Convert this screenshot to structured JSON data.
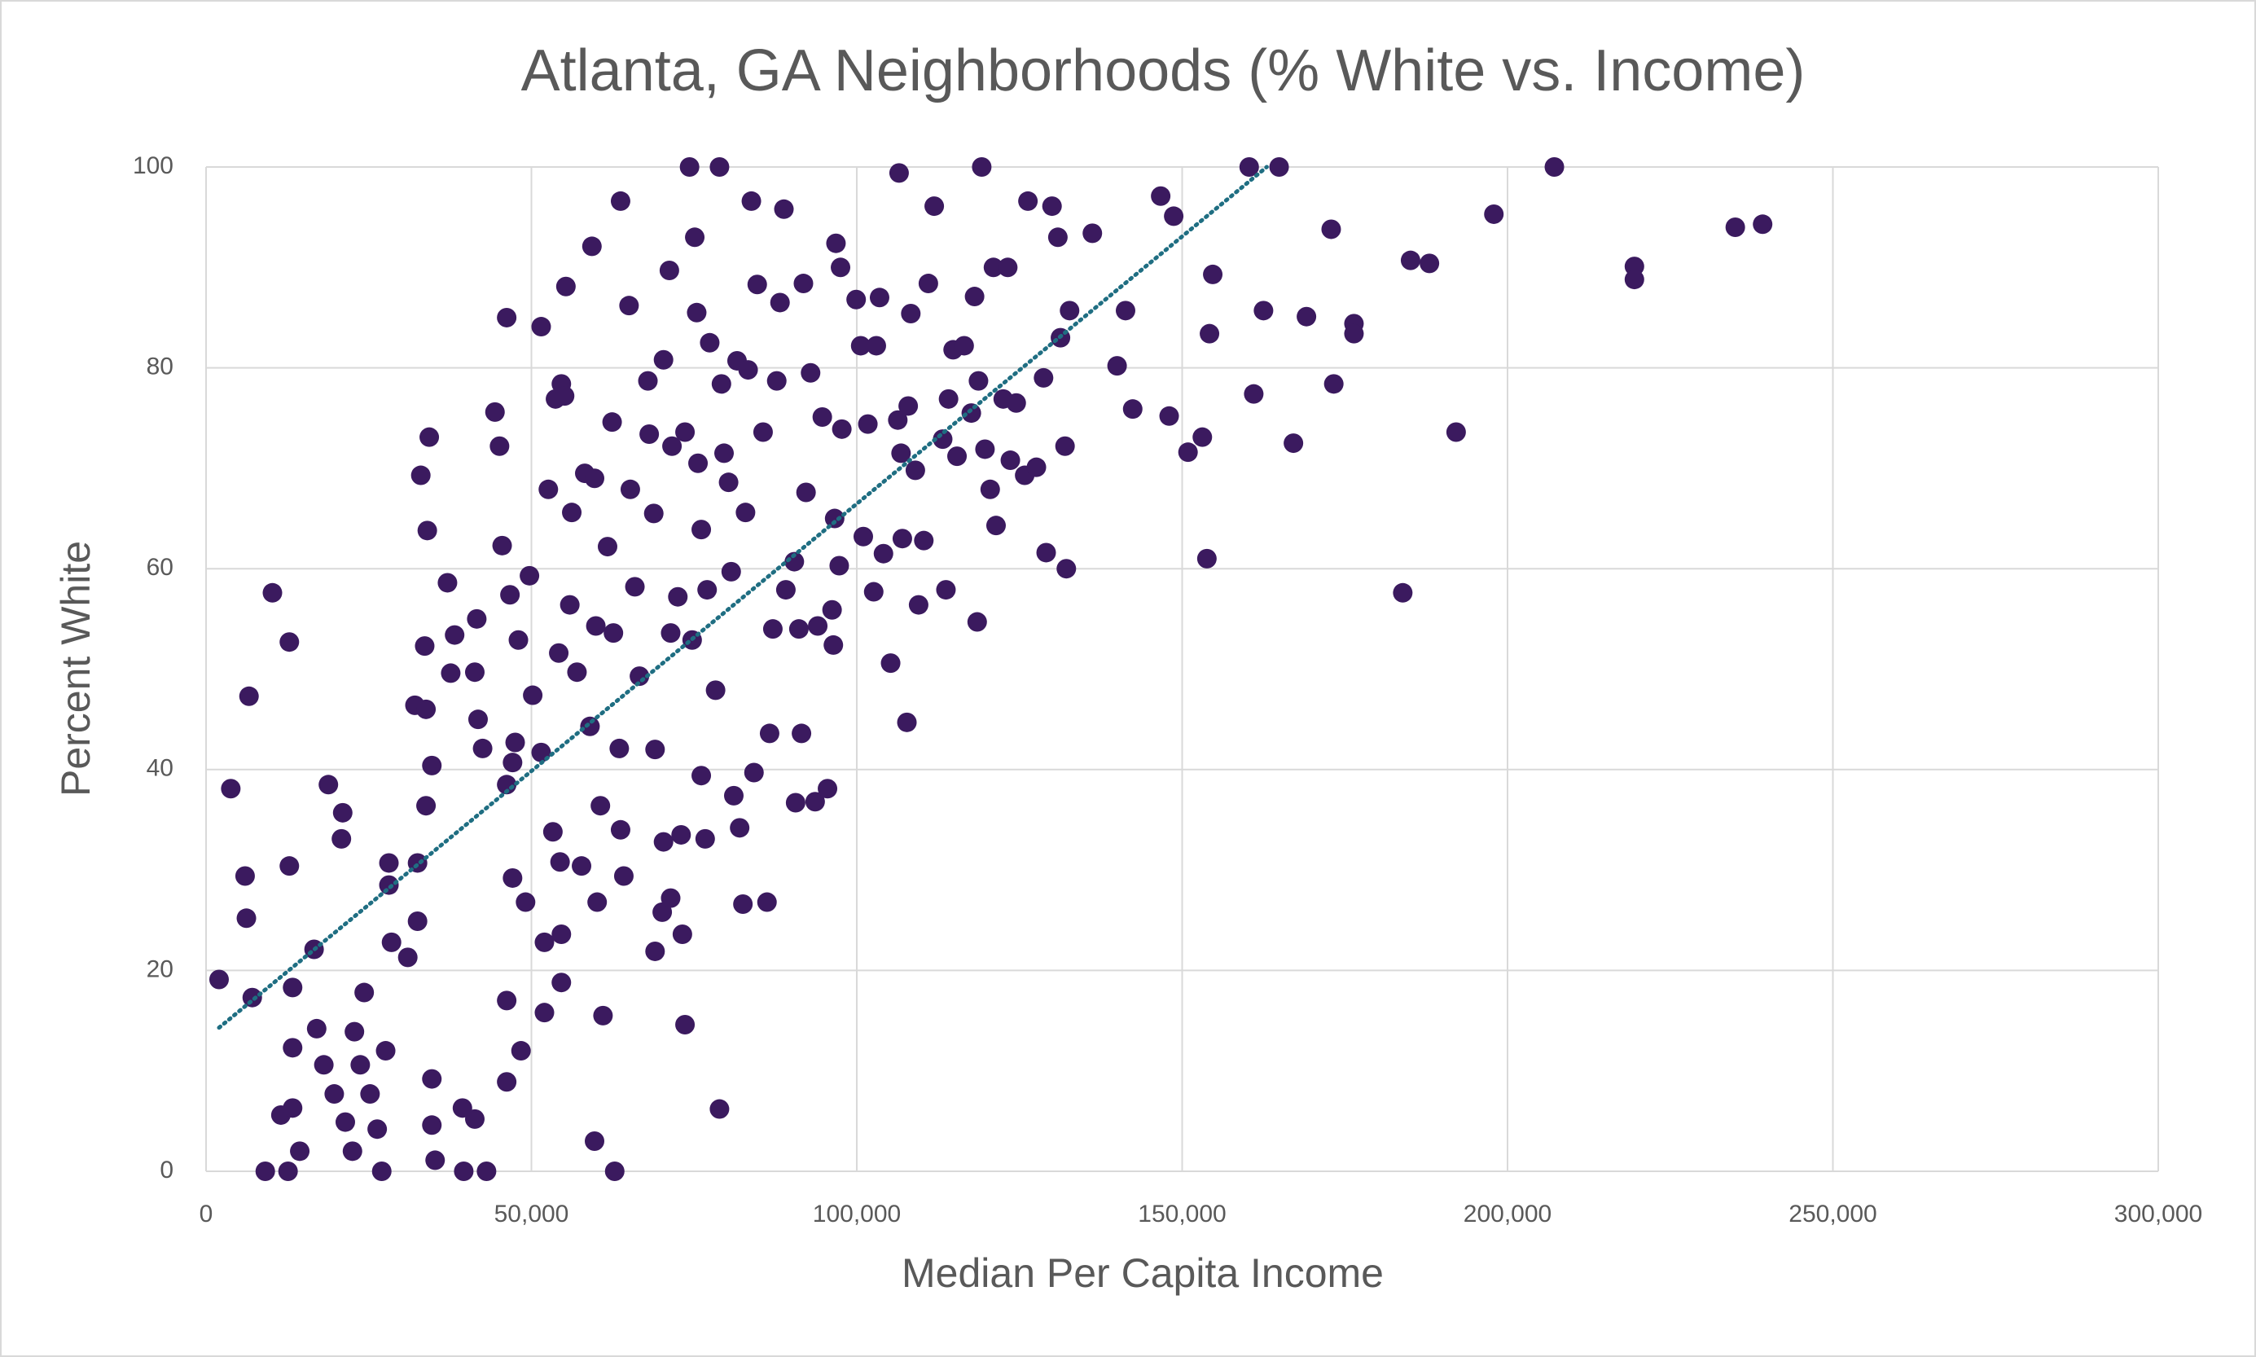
{
  "chart_data": {
    "type": "scatter",
    "title": "Atlanta, GA Neighborhoods (% White vs. Income)",
    "x_label": "Median Per Capita Income",
    "y_label": "Percent White",
    "xlim": [
      0,
      300000
    ],
    "ylim": [
      0,
      100
    ],
    "xticks": [
      0,
      {
        "value": 50000,
        "label": "50,000"
      },
      {
        "value": 100000,
        "label": "100,000"
      },
      {
        "value": 150000,
        "label": "150,000"
      },
      {
        "value": 200000,
        "label": "200,000"
      },
      {
        "value": 250000,
        "label": "250,000"
      },
      {
        "value": 300000,
        "label": "300,000"
      }
    ],
    "yticks": [
      0,
      20,
      40,
      60,
      80,
      100
    ],
    "grid": true,
    "color": "#3b1a5f",
    "x": [
      2000,
      3800,
      6600,
      10200,
      12800,
      6000,
      6200,
      7100,
      12800,
      9100,
      12600,
      14400,
      11500,
      13300,
      13300,
      13300,
      16600,
      17000,
      18800,
      20800,
      21000,
      18100,
      19700,
      21400,
      22500,
      23700,
      24300,
      22800,
      25200,
      26300,
      27000,
      27600,
      28100,
      28500,
      28100,
      31000,
      32500,
      32500,
      32100,
      33800,
      33000,
      34300,
      34000,
      33600,
      34700,
      33800,
      34700,
      34700,
      35200,
      37100,
      37600,
      38200,
      39400,
      39600,
      41300,
      43100,
      41600,
      41300,
      41800,
      42500,
      44400,
      45100,
      45500,
      46200,
      46700,
      47100,
      46200,
      47100,
      46200,
      46200,
      48000,
      47500,
      48400,
      49100,
      49700,
      50200,
      51500,
      51500,
      52000,
      52000,
      52600,
      53300,
      53700,
      54600,
      55100,
      55300,
      54200,
      54400,
      54600,
      54600,
      55900,
      56200,
      57000,
      57700,
      58200,
      59300,
      59000,
      59900,
      59700,
      60100,
      60600,
      59700,
      61000,
      61700,
      62400,
      62600,
      62800,
      63700,
      63700,
      63500,
      64200,
      65000,
      65200,
      65900,
      66600,
      67900,
      68100,
      68800,
      69000,
      69000,
      70100,
      70300,
      70300,
      71200,
      71400,
      71400,
      71600,
      72500,
      73000,
      73200,
      73600,
      73600,
      74300,
      74700,
      75100,
      75400,
      75600,
      76100,
      76100,
      76700,
      77000,
      77400,
      78300,
      78900,
      78900,
      79200,
      79600,
      80300,
      80700,
      81100,
      81600,
      82000,
      82500,
      82900,
      83300,
      83800,
      84200,
      84700,
      85600,
      86200,
      86600,
      87100,
      87700,
      88200,
      88800,
      89100,
      90400,
      90600,
      91100,
      91500,
      91800,
      92200,
      92900,
      93600,
      94000,
      94700,
      95500,
      96200,
      96400,
      96600,
      96800,
      97300,
      97500,
      97700,
      99900,
      100600,
      101000,
      101700,
      102600,
      103000,
      103500,
      104100,
      105200,
      106300,
      106500,
      106800,
      107000,
      107700,
      107900,
      108300,
      109000,
      109500,
      110300,
      111000,
      111900,
      113200,
      113700,
      114100,
      114800,
      115400,
      116500,
      117600,
      118100,
      118500,
      118700,
      119200,
      119700,
      120500,
      121000,
      121400,
      122500,
      123200,
      123600,
      124500,
      125800,
      126300,
      127600,
      128700,
      129100,
      130000,
      130900,
      131300,
      132000,
      132200,
      132700,
      136200,
      140000,
      141300,
      142400,
      146700,
      148000,
      148700,
      150900,
      153100,
      153800,
      154200,
      154700,
      160300,
      161000,
      162500,
      164900,
      167100,
      169100,
      172900,
      173300,
      176400,
      176400,
      183900,
      185100,
      188000,
      192100,
      197900,
      207200,
      219500,
      219500,
      235000,
      239200
    ],
    "values": [
      19.1,
      38.1,
      47.3,
      57.6,
      52.7,
      29.4,
      25.2,
      17.3,
      30.4,
      0,
      0,
      2,
      5.6,
      6.3,
      12.3,
      18.3,
      22.1,
      14.2,
      38.5,
      33.1,
      35.7,
      10.6,
      7.7,
      4.9,
      2,
      10.6,
      17.8,
      13.9,
      7.7,
      4.2,
      0,
      12,
      28.5,
      22.8,
      30.7,
      21.3,
      24.9,
      30.7,
      46.4,
      46,
      69.3,
      73.1,
      63.8,
      52.3,
      40.4,
      36.4,
      9.2,
      4.6,
      1.1,
      58.6,
      49.6,
      53.4,
      6.3,
      0,
      5.2,
      0,
      55,
      49.7,
      45,
      42.1,
      75.6,
      72.2,
      62.3,
      85,
      57.4,
      40.7,
      38.5,
      29.2,
      17,
      8.9,
      52.9,
      42.7,
      12,
      26.8,
      59.3,
      47.4,
      41.7,
      84.1,
      22.8,
      15.8,
      67.9,
      33.8,
      76.9,
      78.4,
      77.2,
      88.1,
      51.6,
      30.8,
      23.6,
      18.8,
      56.4,
      65.6,
      49.7,
      30.4,
      69.5,
      92.1,
      44.3,
      54.3,
      69,
      26.8,
      36.4,
      3,
      15.5,
      62.2,
      74.6,
      53.6,
      0,
      96.6,
      34,
      42.1,
      29.4,
      86.2,
      67.9,
      58.2,
      49.3,
      78.7,
      73.4,
      65.5,
      42,
      21.9,
      25.8,
      32.8,
      80.8,
      89.7,
      53.6,
      27.2,
      72.2,
      57.2,
      33.5,
      23.6,
      14.6,
      73.6,
      100,
      52.9,
      93,
      85.5,
      70.5,
      63.9,
      39.4,
      33.1,
      57.9,
      82.5,
      47.9,
      100,
      6.2,
      78.4,
      71.5,
      68.6,
      59.7,
      37.4,
      80.7,
      34.2,
      26.6,
      65.6,
      79.8,
      96.6,
      39.7,
      88.3,
      73.6,
      26.8,
      43.6,
      54,
      78.7,
      86.5,
      95.8,
      57.9,
      60.7,
      36.7,
      54,
      43.6,
      88.4,
      67.6,
      79.5,
      36.8,
      54.3,
      75.1,
      38.1,
      55.9,
      52.4,
      65,
      92.4,
      60.3,
      90,
      73.9,
      86.8,
      82.2,
      63.2,
      74.4,
      57.7,
      82.2,
      87,
      61.5,
      50.6,
      74.8,
      99.4,
      71.5,
      63,
      44.7,
      76.2,
      85.4,
      69.8,
      56.4,
      62.8,
      88.4,
      96.1,
      72.9,
      57.9,
      76.9,
      81.8,
      71.2,
      82.2,
      75.5,
      87.1,
      54.7,
      78.7,
      100,
      71.9,
      67.9,
      90,
      64.3,
      76.9,
      90,
      70.8,
      76.5,
      69.3,
      96.6,
      70.1,
      79,
      61.6,
      96.1,
      93,
      83,
      72.2,
      60,
      85.7,
      93.4,
      80.2,
      85.7,
      75.9,
      97.1,
      75.2,
      95.1,
      71.6,
      73.1,
      61,
      83.4,
      89.3,
      100,
      77.4,
      85.7,
      100,
      72.5,
      85.1,
      93.8,
      78.4,
      84.4,
      83.4,
      57.6,
      90.7,
      90.4,
      73.6,
      95.3,
      100,
      90.1,
      88.8,
      94,
      94.3
    ],
    "trendline": {
      "x": [
        2000,
        163000
      ],
      "values": [
        14.3,
        100
      ],
      "color": "#1f6e82"
    }
  }
}
